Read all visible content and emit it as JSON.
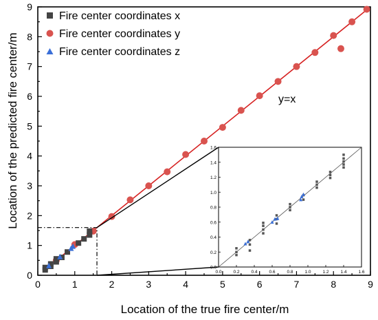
{
  "chart_data": {
    "type": "scatter",
    "xlabel": "Location of the true fire center/m",
    "ylabel": "Location of the predicted fire center/m",
    "xlim": [
      0,
      9
    ],
    "ylim": [
      0,
      9
    ],
    "xticks": [
      "0",
      "1",
      "2",
      "3",
      "4",
      "5",
      "6",
      "7",
      "8",
      "9"
    ],
    "yticks": [
      "0",
      "1",
      "2",
      "3",
      "4",
      "5",
      "6",
      "7",
      "8",
      "9"
    ],
    "grid": false,
    "legend_position": "top-left",
    "reference_line": {
      "label": "y=x",
      "color": "#d62020"
    },
    "series": [
      {
        "name": "Fire center coordinates x",
        "marker": "square",
        "color": "#444444",
        "points": [
          [
            0.2,
            0.18
          ],
          [
            0.2,
            0.26
          ],
          [
            0.35,
            0.3
          ],
          [
            0.35,
            0.38
          ],
          [
            0.5,
            0.45
          ],
          [
            0.5,
            0.55
          ],
          [
            0.65,
            0.6
          ],
          [
            0.8,
            0.78
          ],
          [
            1.1,
            1.08
          ],
          [
            1.25,
            1.22
          ],
          [
            1.4,
            1.35
          ],
          [
            1.4,
            1.48
          ]
        ]
      },
      {
        "name": "Fire center coordinates y",
        "marker": "circle",
        "color": "#d9534f",
        "points": [
          [
            0.5,
            0.5
          ],
          [
            1.0,
            1.03
          ],
          [
            1.5,
            1.48
          ],
          [
            2.0,
            1.97
          ],
          [
            2.5,
            2.53
          ],
          [
            3.0,
            3.0
          ],
          [
            3.5,
            3.47
          ],
          [
            4.0,
            4.05
          ],
          [
            4.5,
            4.5
          ],
          [
            5.0,
            4.96
          ],
          [
            5.5,
            5.53
          ],
          [
            6.0,
            6.02
          ],
          [
            6.5,
            6.5
          ],
          [
            7.0,
            7.0
          ],
          [
            7.5,
            7.47
          ],
          [
            8.0,
            8.04
          ],
          [
            8.2,
            7.6
          ],
          [
            8.5,
            8.5
          ],
          [
            8.9,
            8.92
          ]
        ]
      },
      {
        "name": "Fire center coordinates z",
        "marker": "triangle",
        "color": "#3a6fd8",
        "points": [
          [
            0.3,
            0.32
          ],
          [
            0.6,
            0.62
          ],
          [
            0.9,
            0.9
          ],
          [
            0.95,
            0.97
          ]
        ]
      }
    ],
    "inset": {
      "xlim": [
        0,
        1.6
      ],
      "ylim": [
        0,
        1.6
      ],
      "xticks": [
        "0.0",
        "0.2",
        "0.4",
        "0.6",
        "0.8",
        "1.0",
        "1.2",
        "1.4",
        "1.6"
      ],
      "yticks": [
        "0.0",
        "0.2",
        "0.4",
        "0.6",
        "0.8",
        "1.0",
        "1.2",
        "1.4",
        "1.6"
      ],
      "zoom_region": {
        "x": [
          0,
          1.6
        ],
        "y": [
          0,
          1.6
        ]
      },
      "series": [
        {
          "name": "Fire center coordinates x",
          "marker": "square",
          "color": "#555555",
          "points": [
            [
              0.2,
              0.16
            ],
            [
              0.2,
              0.2
            ],
            [
              0.2,
              0.25
            ],
            [
              0.35,
              0.22
            ],
            [
              0.35,
              0.3
            ],
            [
              0.35,
              0.36
            ],
            [
              0.5,
              0.45
            ],
            [
              0.5,
              0.5
            ],
            [
              0.5,
              0.55
            ],
            [
              0.5,
              0.59
            ],
            [
              0.65,
              0.58
            ],
            [
              0.65,
              0.64
            ],
            [
              0.65,
              0.69
            ],
            [
              0.8,
              0.76
            ],
            [
              0.8,
              0.8
            ],
            [
              0.8,
              0.84
            ],
            [
              0.95,
              0.9
            ],
            [
              0.95,
              0.96
            ],
            [
              1.1,
              1.06
            ],
            [
              1.1,
              1.1
            ],
            [
              1.1,
              1.14
            ],
            [
              1.25,
              1.19
            ],
            [
              1.25,
              1.23
            ],
            [
              1.25,
              1.27
            ],
            [
              1.4,
              1.33
            ],
            [
              1.4,
              1.37
            ],
            [
              1.4,
              1.41
            ],
            [
              1.4,
              1.45
            ],
            [
              1.4,
              1.5
            ]
          ]
        },
        {
          "name": "Fire center coordinates z",
          "marker": "triangle",
          "color": "#3a6fd8",
          "points": [
            [
              0.3,
              0.31
            ],
            [
              0.33,
              0.34
            ],
            [
              0.6,
              0.6
            ],
            [
              0.63,
              0.64
            ],
            [
              0.66,
              0.65
            ],
            [
              0.92,
              0.9
            ],
            [
              0.93,
              0.94
            ],
            [
              0.95,
              0.97
            ]
          ]
        }
      ]
    }
  }
}
